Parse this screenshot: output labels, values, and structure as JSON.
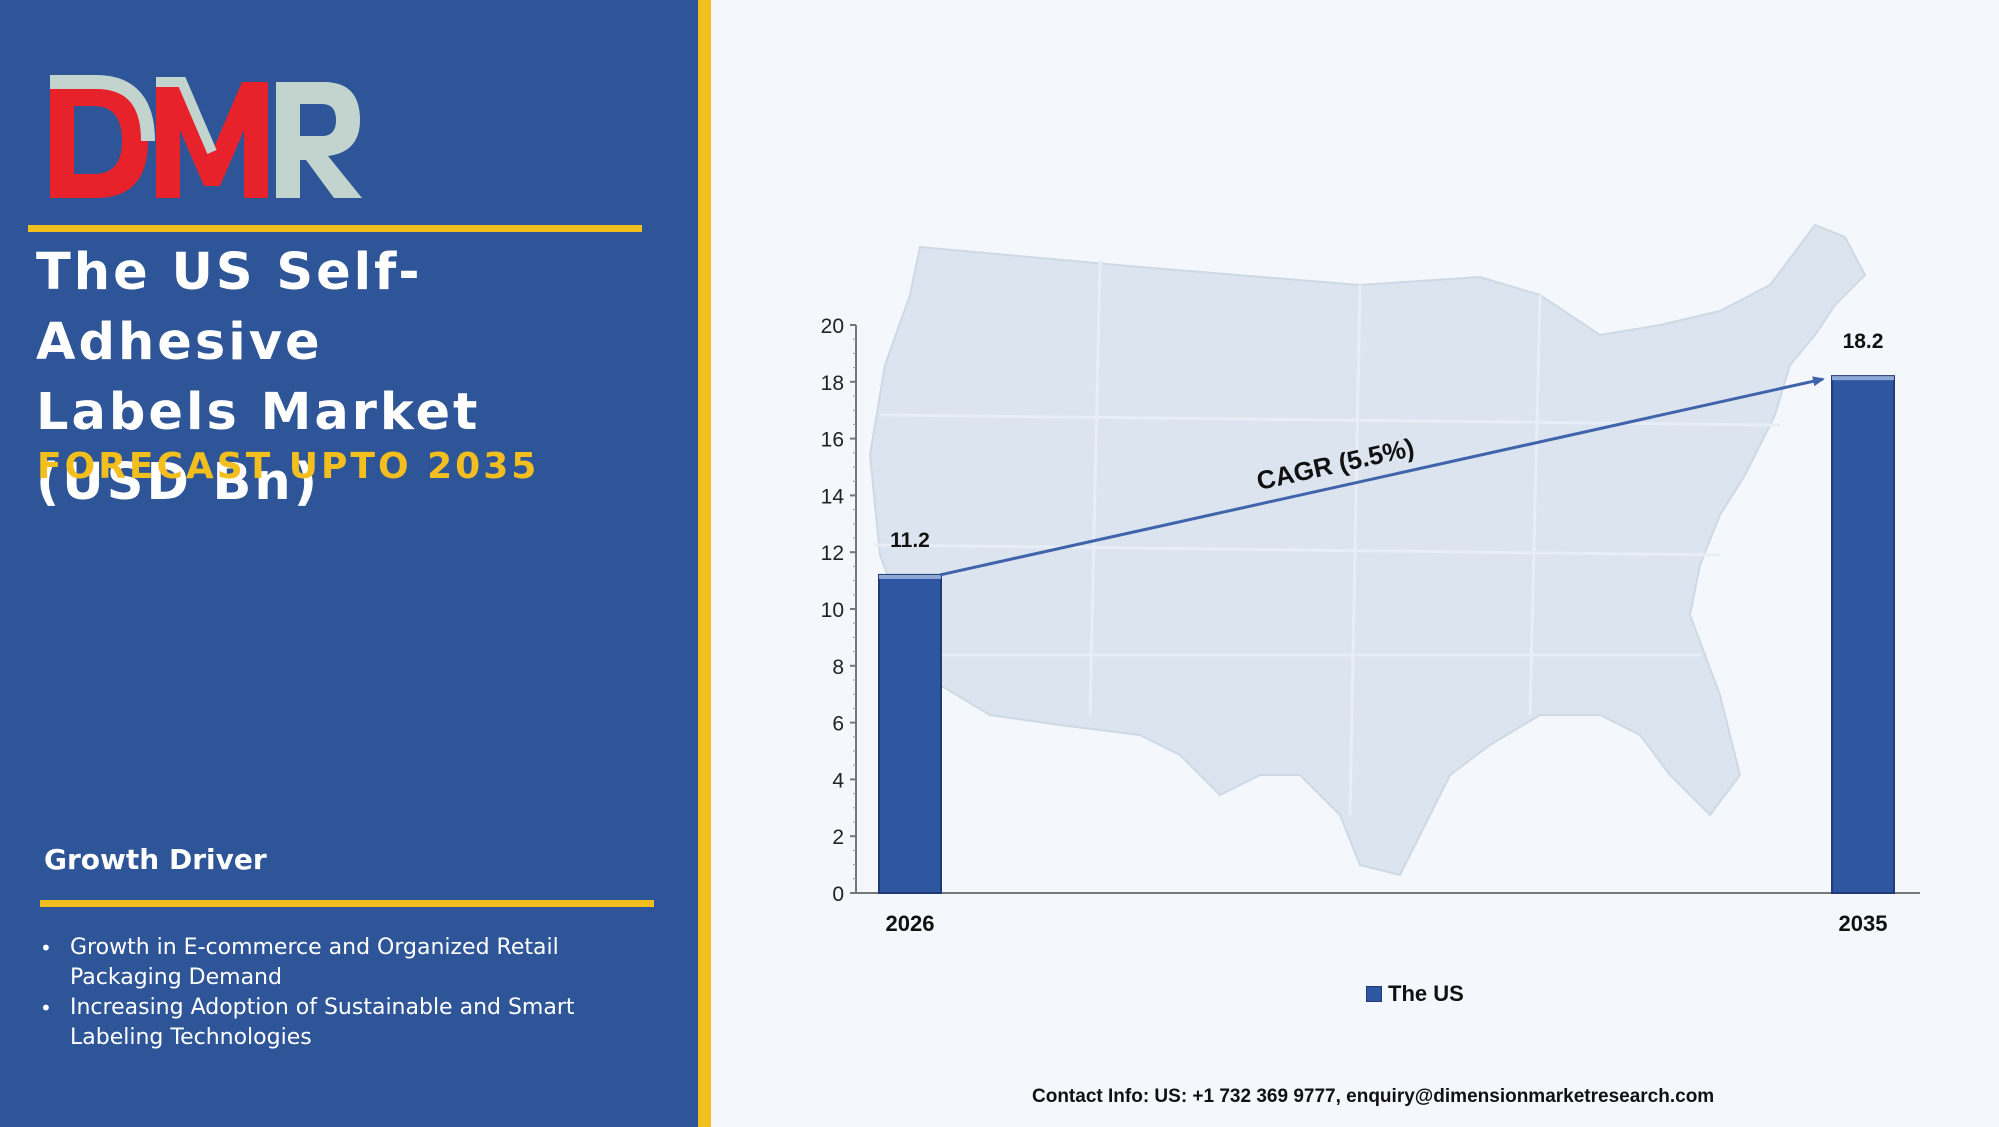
{
  "logo": {
    "text": "DMR"
  },
  "panel": {
    "title_lines": [
      "The US Self-Adhesive",
      "Labels Market",
      "(USD Bn)"
    ],
    "subtitle": "FORECAST UPTO 2035",
    "driver_heading": "Growth Driver",
    "drivers": [
      "Growth in E-commerce and Organized Retail Packaging Demand",
      "Increasing Adoption of Sustainable and Smart Labeling Technologies"
    ]
  },
  "colors": {
    "panel_bg": "#2e5597",
    "accent": "#f2bf1f",
    "bar": "#2f56a0",
    "logo_red": "#e8222a",
    "logo_grey": "#c3d4cf"
  },
  "chart_data": {
    "type": "bar",
    "categories": [
      "2026",
      "2035"
    ],
    "series": [
      {
        "name": "The US",
        "values": [
          11.2,
          18.2
        ]
      }
    ],
    "data_labels": [
      "11.2",
      "18.2"
    ],
    "y_ticks": [
      0,
      2,
      4,
      6,
      8,
      10,
      12,
      14,
      16,
      18,
      20
    ],
    "ylim": [
      0,
      20
    ],
    "annotation": "CAGR (5.5%)",
    "legend_position": "bottom",
    "grid": false
  },
  "footer": {
    "contact": "Contact Info: US: +1 732 369 9777, enquiry@dimensionmarketresearch.com"
  }
}
